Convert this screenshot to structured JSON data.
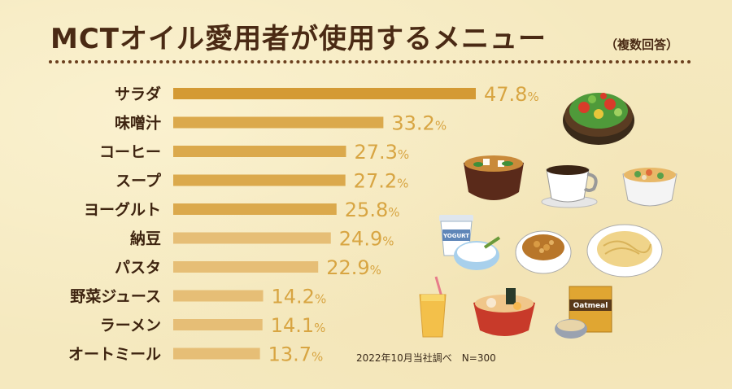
{
  "title": "MCTオイル愛用者が使用するメニュー",
  "subtitle": "（複数回答）",
  "note": "2022年10月当社調べ　N=300",
  "illustrations": {
    "yogurt_label": "YOGURT",
    "oatmeal_label": "Oatmeal"
  },
  "colors": {
    "bar_dark": "#d49a34",
    "bar_light": "#e6be76",
    "value_text": "#d8a542",
    "label_text": "#3e2410"
  },
  "chart_data": {
    "type": "bar",
    "orientation": "horizontal",
    "categories": [
      "サラダ",
      "味噌汁",
      "コーヒー",
      "スープ",
      "ヨーグルト",
      "納豆",
      "パスタ",
      "野菜ジュース",
      "ラーメン",
      "オートミール"
    ],
    "values": [
      47.8,
      33.2,
      27.3,
      27.2,
      25.8,
      24.9,
      22.9,
      14.2,
      14.1,
      13.7
    ],
    "value_labels": [
      "47.8%",
      "33.2%",
      "27.3%",
      "27.2%",
      "25.8%",
      "24.9%",
      "22.9%",
      "14.2%",
      "14.1%",
      "13.7%"
    ],
    "unit": "%"
  }
}
